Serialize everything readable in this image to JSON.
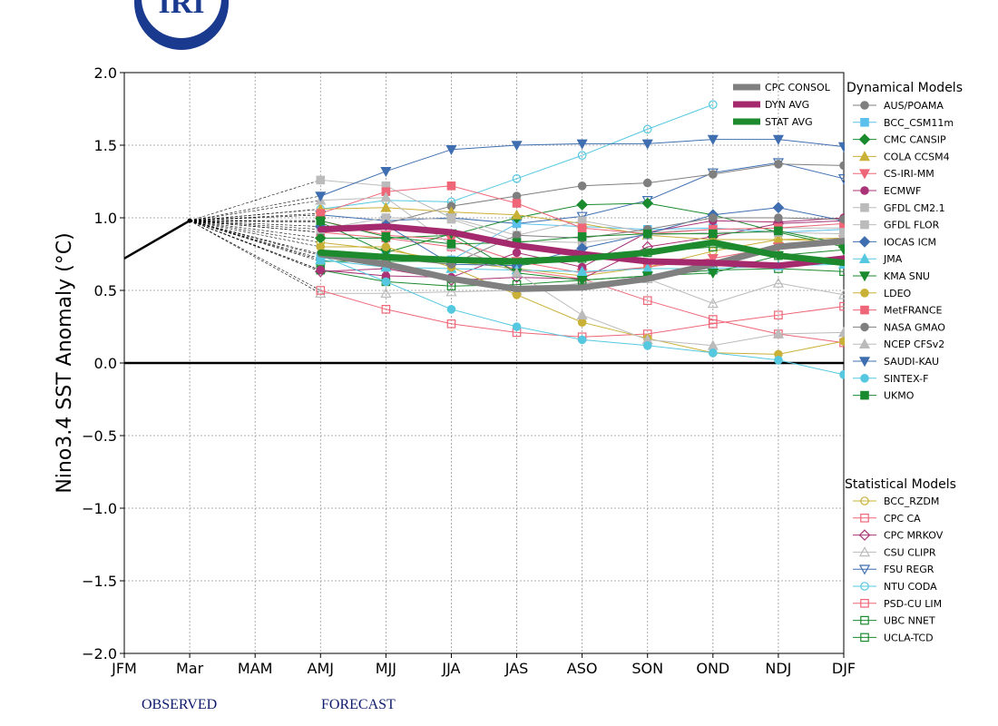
{
  "logo_text": "IRI",
  "footer": {
    "observed": "OBSERVED",
    "forecast": "FORECAST"
  },
  "chart_data": {
    "type": "line",
    "ylabel": "Nino3.4 SST Anomaly (°C)",
    "xlabel": "",
    "categories": [
      "JFM",
      "Mar",
      "MAM",
      "AMJ",
      "MJJ",
      "JJA",
      "JAS",
      "ASO",
      "SON",
      "OND",
      "NDJ",
      "DJF"
    ],
    "ylim": [
      -2.0,
      2.0
    ],
    "yticks": [
      "−2.0",
      "−1.5",
      "−1.0",
      "−0.5",
      "0.0",
      "0.5",
      "1.0",
      "1.5",
      "2.0"
    ],
    "grid": true,
    "observed": {
      "x": [
        0,
        1
      ],
      "y": [
        0.72,
        0.98
      ]
    },
    "consensus": [
      {
        "name": "CPC CONSOL",
        "color": "#808080",
        "values": [
          null,
          null,
          null,
          0.75,
          0.68,
          0.58,
          0.51,
          0.52,
          0.58,
          0.68,
          0.8,
          0.84
        ]
      },
      {
        "name": "DYN AVG",
        "color": "#a52a6d",
        "values": [
          null,
          null,
          null,
          0.92,
          0.94,
          0.9,
          0.81,
          0.75,
          0.7,
          0.69,
          0.67,
          0.72
        ]
      },
      {
        "name": "STAT AVG",
        "color": "#1e8a2e",
        "values": [
          null,
          null,
          null,
          0.76,
          0.73,
          0.71,
          0.7,
          0.72,
          0.76,
          0.83,
          0.74,
          0.69
        ]
      }
    ],
    "legend_dynamical_title": "Dynamical Models",
    "legend_statistical_title": "Statistical Models",
    "dynamical": [
      {
        "name": "AUS/POAMA",
        "color": "#7f7f7f",
        "marker": "circle",
        "filled": true,
        "values": [
          null,
          null,
          null,
          0.9,
          0.96,
          1.08,
          1.15,
          1.22,
          1.24,
          1.3,
          1.37,
          1.36
        ]
      },
      {
        "name": "BCC_CSM11m",
        "color": "#5bc0eb",
        "marker": "square",
        "filled": true,
        "values": [
          null,
          null,
          null,
          0.72,
          0.74,
          0.71,
          0.96,
          0.94,
          0.92,
          0.93,
          0.9,
          0.92
        ]
      },
      {
        "name": "CMC CANSIP",
        "color": "#1a8a2e",
        "marker": "diamond",
        "filled": true,
        "values": [
          null,
          null,
          null,
          0.86,
          0.86,
          0.88,
          1.0,
          1.09,
          1.1,
          1.02,
          0.9,
          0.8
        ]
      },
      {
        "name": "COLA CCSM4",
        "color": "#c9b037",
        "marker": "triangle",
        "filled": true,
        "values": [
          null,
          null,
          null,
          1.06,
          1.07,
          1.04,
          1.02,
          0.96,
          0.88,
          0.85,
          0.85,
          0.84
        ]
      },
      {
        "name": "CS-IRI-MM",
        "color": "#ee6677",
        "marker": "triangle-down",
        "filled": true,
        "values": [
          null,
          null,
          null,
          0.98,
          0.88,
          0.85,
          0.7,
          0.62,
          0.66,
          0.72,
          0.8,
          0.85
        ]
      },
      {
        "name": "ECMWF",
        "color": "#aa3377",
        "marker": "circle",
        "filled": true,
        "values": [
          null,
          null,
          null,
          0.64,
          0.6,
          0.59,
          0.76,
          0.66,
          0.9,
          0.98,
          0.97,
          1.0
        ]
      },
      {
        "name": "GFDL CM2.1",
        "color": "#bbbbbb",
        "marker": "square",
        "filled": true,
        "values": [
          null,
          null,
          null,
          1.26,
          1.22,
          1.0,
          0.88,
          0.98,
          0.9,
          0.92,
          0.93,
          0.93
        ]
      },
      {
        "name": "GFDL FLOR",
        "color": "#bbbbbb",
        "marker": "square",
        "filled": true,
        "values": [
          null,
          null,
          null,
          0.92,
          1.0,
          0.99,
          0.84,
          0.83,
          0.88,
          0.9,
          0.9,
          0.89
        ]
      },
      {
        "name": "IOCAS ICM",
        "color": "#3f6fb0",
        "marker": "diamond",
        "filled": true,
        "values": [
          null,
          null,
          null,
          0.94,
          0.95,
          0.68,
          0.67,
          0.79,
          0.89,
          1.02,
          1.07,
          0.98
        ]
      },
      {
        "name": "JMA",
        "color": "#55c8e0",
        "marker": "triangle",
        "filled": true,
        "values": [
          null,
          null,
          null,
          0.71,
          0.66,
          0.65,
          0.64,
          0.63,
          0.65,
          0.65,
          0.67,
          0.68
        ]
      },
      {
        "name": "KMA SNU",
        "color": "#1a8a2e",
        "marker": "triangle-down",
        "filled": true,
        "values": [
          null,
          null,
          null,
          0.97,
          0.76,
          0.89,
          0.62,
          0.57,
          0.6,
          0.62,
          0.74,
          0.78
        ]
      },
      {
        "name": "LDEO",
        "color": "#c9b037",
        "marker": "circle",
        "filled": true,
        "values": [
          null,
          null,
          null,
          0.8,
          0.8,
          0.66,
          0.47,
          0.28,
          0.17,
          0.07,
          0.06,
          0.15
        ]
      },
      {
        "name": "MetFRANCE",
        "color": "#ee6677",
        "marker": "square",
        "filled": true,
        "values": [
          null,
          null,
          null,
          1.03,
          1.18,
          1.22,
          1.1,
          0.93,
          0.89,
          0.92,
          0.93,
          0.96
        ]
      },
      {
        "name": "NASA GMAO",
        "color": "#7f7f7f",
        "marker": "circle",
        "filled": true,
        "values": [
          null,
          null,
          null,
          0.75,
          0.72,
          0.68,
          0.88,
          0.86,
          0.92,
          1.0,
          1.0,
          0.99
        ]
      },
      {
        "name": "NCEP CFSv2",
        "color": "#bbbbbb",
        "marker": "triangle",
        "filled": true,
        "values": [
          null,
          null,
          null,
          1.12,
          1.14,
          0.81,
          0.62,
          0.33,
          0.16,
          0.12,
          0.2,
          0.21
        ]
      },
      {
        "name": "SAUDI-KAU",
        "color": "#3f6fb0",
        "marker": "triangle-down",
        "filled": true,
        "values": [
          null,
          null,
          null,
          1.15,
          1.32,
          1.47,
          1.5,
          1.51,
          1.51,
          1.54,
          1.54,
          1.49
        ]
      },
      {
        "name": "SINTEX-F",
        "color": "#55c8e0",
        "marker": "circle",
        "filled": true,
        "values": [
          null,
          null,
          null,
          0.74,
          0.56,
          0.37,
          0.25,
          0.16,
          0.12,
          0.07,
          0.02,
          -0.08
        ]
      },
      {
        "name": "UKMO",
        "color": "#1a8a2e",
        "marker": "square",
        "filled": true,
        "values": [
          null,
          null,
          null,
          0.98,
          0.87,
          0.82,
          0.83,
          0.87,
          0.89,
          0.89,
          0.91,
          0.82
        ]
      }
    ],
    "statistical": [
      {
        "name": "BCC_RZDM",
        "color": "#c9b037",
        "marker": "circle",
        "filled": false,
        "values": [
          null,
          null,
          null,
          0.83,
          0.78,
          0.7,
          0.65,
          0.6,
          0.66,
          0.77,
          0.85,
          0.86
        ]
      },
      {
        "name": "CPC CA",
        "color": "#ee6677",
        "marker": "square",
        "filled": false,
        "values": [
          null,
          null,
          null,
          0.9,
          0.86,
          0.8,
          0.64,
          0.58,
          0.43,
          0.3,
          0.2,
          0.14
        ]
      },
      {
        "name": "CPC MRKOV",
        "color": "#aa3377",
        "marker": "diamond",
        "filled": false,
        "values": [
          null,
          null,
          null,
          0.63,
          0.65,
          0.57,
          0.59,
          0.58,
          0.8,
          0.87,
          0.96,
          0.98
        ]
      },
      {
        "name": "CSU CLIPR",
        "color": "#bbbbbb",
        "marker": "triangle",
        "filled": false,
        "values": [
          null,
          null,
          null,
          0.48,
          0.48,
          0.49,
          0.5,
          0.55,
          0.58,
          0.41,
          0.55,
          0.47
        ]
      },
      {
        "name": "FSU REGR",
        "color": "#3f6fb0",
        "marker": "triangle-down",
        "filled": false,
        "values": [
          null,
          null,
          null,
          1.02,
          0.98,
          1.0,
          0.96,
          1.01,
          1.12,
          1.31,
          1.38,
          1.27
        ]
      },
      {
        "name": "NTU CODA",
        "color": "#55c8e0",
        "marker": "circle",
        "filled": false,
        "values": [
          null,
          null,
          null,
          1.06,
          1.12,
          1.11,
          1.27,
          1.43,
          1.61,
          1.78,
          null,
          null
        ]
      },
      {
        "name": "PSD-CU LIM",
        "color": "#ee6677",
        "marker": "square",
        "filled": false,
        "values": [
          null,
          null,
          null,
          0.5,
          0.37,
          0.27,
          0.21,
          0.18,
          0.2,
          0.27,
          0.33,
          0.39
        ]
      },
      {
        "name": "UBC NNET",
        "color": "#1a8a2e",
        "marker": "square",
        "filled": false,
        "values": [
          null,
          null,
          null,
          0.64,
          0.56,
          0.53,
          0.54,
          0.57,
          0.6,
          0.64,
          0.65,
          0.63
        ]
      },
      {
        "name": "UCLA-TCD",
        "color": "#1a8a2e",
        "marker": "square",
        "filled": false,
        "values": [
          null,
          null,
          null,
          0.7,
          0.7,
          0.7,
          0.67,
          0.72,
          0.76,
          0.8,
          0.74,
          0.7
        ]
      }
    ]
  }
}
